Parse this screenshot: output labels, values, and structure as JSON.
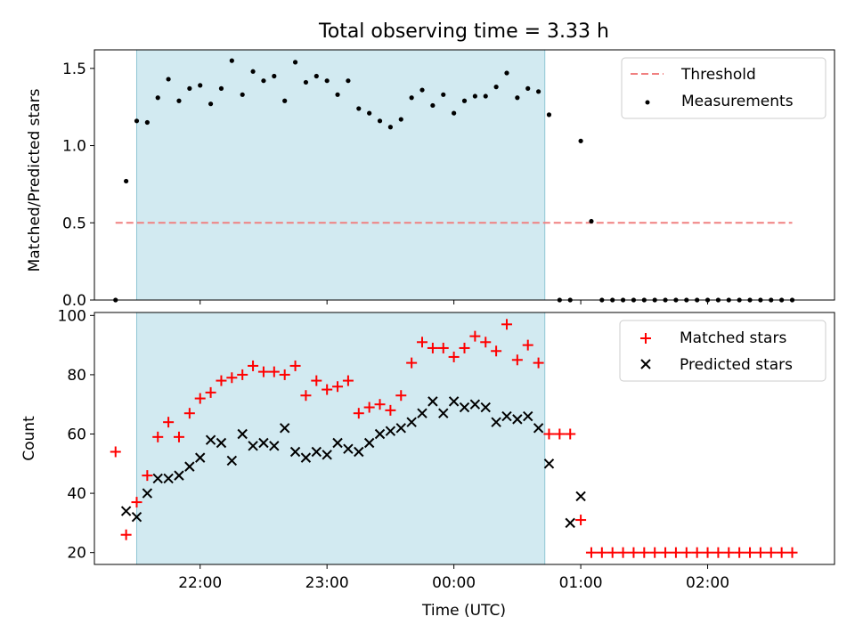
{
  "chart_data": [
    {
      "type": "scatter",
      "title": "Total observing time = 3.33 h",
      "xlabel": "",
      "ylabel": "Matched/Predicted stars",
      "xlim": [
        "21:10",
        "03:00"
      ],
      "ylim": [
        0,
        1.62
      ],
      "yticks": [
        "0.0",
        "0.5",
        "1.0",
        "1.5"
      ],
      "observing_window": [
        "21:30",
        "00:43"
      ],
      "threshold": {
        "name": "Threshold",
        "value": 0.5,
        "x_range": [
          "21:20",
          "02:40"
        ],
        "color": "#f08080",
        "style": "dashed"
      },
      "legend": {
        "location": "upper right",
        "entries": [
          "Threshold",
          "Measurements"
        ]
      },
      "series": [
        {
          "name": "Measurements",
          "marker": "dot",
          "color": "#000000",
          "x": [
            "21:20",
            "21:25",
            "21:30",
            "21:35",
            "21:40",
            "21:45",
            "21:50",
            "21:55",
            "22:00",
            "22:05",
            "22:10",
            "22:15",
            "22:20",
            "22:25",
            "22:30",
            "22:35",
            "22:40",
            "22:45",
            "22:50",
            "22:55",
            "23:00",
            "23:05",
            "23:10",
            "23:15",
            "23:20",
            "23:25",
            "23:30",
            "23:35",
            "23:40",
            "23:45",
            "23:50",
            "23:55",
            "00:00",
            "00:05",
            "00:10",
            "00:15",
            "00:20",
            "00:25",
            "00:30",
            "00:35",
            "00:40",
            "00:45",
            "00:50",
            "00:55",
            "01:00",
            "01:05",
            "01:10",
            "01:15",
            "01:20",
            "01:25",
            "01:30",
            "01:35",
            "01:40",
            "01:45",
            "01:50",
            "01:55",
            "02:00",
            "02:05",
            "02:10",
            "02:15",
            "02:20",
            "02:25",
            "02:30",
            "02:35",
            "02:40"
          ],
          "y": [
            0.0,
            0.77,
            1.16,
            1.15,
            1.31,
            1.43,
            1.29,
            1.37,
            1.39,
            1.27,
            1.37,
            1.55,
            1.33,
            1.48,
            1.42,
            1.45,
            1.29,
            1.54,
            1.41,
            1.45,
            1.42,
            1.33,
            1.42,
            1.24,
            1.21,
            1.16,
            1.12,
            1.17,
            1.31,
            1.36,
            1.26,
            1.33,
            1.21,
            1.29,
            1.32,
            1.32,
            1.38,
            1.47,
            1.31,
            1.37,
            1.35,
            1.2,
            0.0,
            0.0,
            1.03,
            0.51,
            0.0,
            0.0,
            0.0,
            0.0,
            0.0,
            0.0,
            0.0,
            0.0,
            0.0,
            0.0,
            0.0,
            0.0,
            0.0,
            0.0,
            0.0,
            0.0,
            0.0,
            0.0,
            0.0
          ]
        }
      ]
    },
    {
      "type": "scatter",
      "title": "",
      "xlabel": "Time (UTC)",
      "ylabel": "Count",
      "xlim": [
        "21:10",
        "03:00"
      ],
      "ylim": [
        16,
        101
      ],
      "yticks": [
        "20",
        "40",
        "60",
        "80",
        "100"
      ],
      "xticks": [
        "22:00",
        "23:00",
        "00:00",
        "01:00",
        "02:00"
      ],
      "observing_window": [
        "21:30",
        "00:43"
      ],
      "legend": {
        "location": "upper right",
        "entries": [
          "Matched stars",
          "Predicted stars"
        ]
      },
      "series": [
        {
          "name": "Matched stars",
          "marker": "plus",
          "color": "#ff0000",
          "x": [
            "21:20",
            "21:25",
            "21:30",
            "21:35",
            "21:40",
            "21:45",
            "21:50",
            "21:55",
            "22:00",
            "22:05",
            "22:10",
            "22:15",
            "22:20",
            "22:25",
            "22:30",
            "22:35",
            "22:40",
            "22:45",
            "22:50",
            "22:55",
            "23:00",
            "23:05",
            "23:10",
            "23:15",
            "23:20",
            "23:25",
            "23:30",
            "23:35",
            "23:40",
            "23:45",
            "23:50",
            "23:55",
            "00:00",
            "00:05",
            "00:10",
            "00:15",
            "00:20",
            "00:25",
            "00:30",
            "00:35",
            "00:40",
            "00:45",
            "00:50",
            "00:55",
            "01:00",
            "01:05",
            "01:10",
            "01:15",
            "01:20",
            "01:25",
            "01:30",
            "01:35",
            "01:40",
            "01:45",
            "01:50",
            "01:55",
            "02:00",
            "02:05",
            "02:10",
            "02:15",
            "02:20",
            "02:25",
            "02:30",
            "02:35",
            "02:40"
          ],
          "y": [
            54,
            26,
            37,
            46,
            59,
            64,
            59,
            67,
            72,
            74,
            78,
            79,
            80,
            83,
            81,
            81,
            80,
            83,
            73,
            78,
            75,
            76,
            78,
            67,
            69,
            70,
            68,
            73,
            84,
            91,
            89,
            89,
            86,
            89,
            93,
            91,
            88,
            97,
            85,
            90,
            84,
            60,
            60,
            60,
            31,
            20,
            20,
            20,
            20,
            20,
            20,
            20,
            20,
            20,
            20,
            20,
            20,
            20,
            20,
            20,
            20,
            20,
            20,
            20,
            20
          ]
        },
        {
          "name": "Predicted stars",
          "marker": "x",
          "color": "#000000",
          "x": [
            "21:25",
            "21:30",
            "21:35",
            "21:40",
            "21:45",
            "21:50",
            "21:55",
            "22:00",
            "22:05",
            "22:10",
            "22:15",
            "22:20",
            "22:25",
            "22:30",
            "22:35",
            "22:40",
            "22:45",
            "22:50",
            "22:55",
            "23:00",
            "23:05",
            "23:10",
            "23:15",
            "23:20",
            "23:25",
            "23:30",
            "23:35",
            "23:40",
            "23:45",
            "23:50",
            "23:55",
            "00:00",
            "00:05",
            "00:10",
            "00:15",
            "00:20",
            "00:25",
            "00:30",
            "00:35",
            "00:40",
            "00:45",
            "00:55",
            "01:00"
          ],
          "y": [
            34,
            32,
            40,
            45,
            45,
            46,
            49,
            52,
            58,
            57,
            51,
            60,
            56,
            57,
            56,
            62,
            54,
            52,
            54,
            53,
            57,
            55,
            54,
            57,
            60,
            61,
            62,
            64,
            67,
            71,
            67,
            71,
            69,
            70,
            69,
            64,
            66,
            65,
            66,
            62,
            50,
            30,
            39
          ]
        }
      ]
    }
  ]
}
